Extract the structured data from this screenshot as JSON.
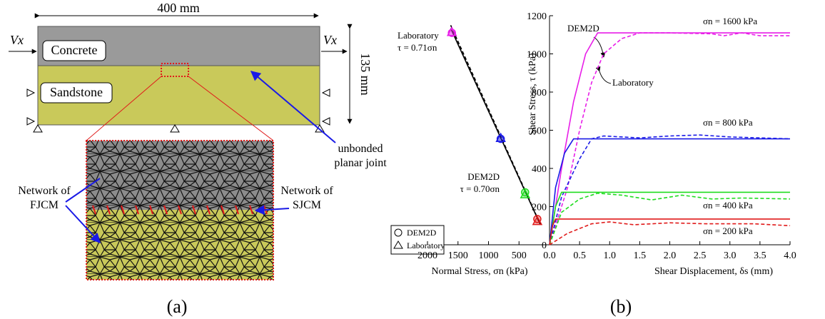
{
  "figure_a": {
    "width_label": "400 mm",
    "height_label": "135 mm",
    "load_labels": [
      "Vx",
      "Vx"
    ],
    "layers": [
      "Concrete",
      "Sandstone"
    ],
    "joint_label": [
      "unbonded",
      "planar joint"
    ],
    "fjcm_label": [
      "Network of",
      "FJCM"
    ],
    "sjcm_label": [
      "Network of",
      "SJCM"
    ]
  },
  "captions": [
    "(a)",
    "(b)"
  ],
  "chart_data": [
    {
      "type": "line",
      "xlabel": "Shear Displacement, δs (mm)",
      "ylabel": "Shear Stress, τ (kPa)",
      "xlim": [
        0,
        4
      ],
      "xticks": [
        {
          "value": 0,
          "label": "0.0"
        },
        {
          "value": 0.5,
          "label": "0.5"
        },
        {
          "value": 1,
          "label": "1.0"
        },
        {
          "value": 1.5,
          "label": "1.5"
        },
        {
          "value": 2,
          "label": "2.0"
        },
        {
          "value": 2.5,
          "label": "2.5"
        },
        {
          "value": 3,
          "label": "3.0"
        },
        {
          "value": 3.5,
          "label": "3.5"
        },
        {
          "value": 4,
          "label": "4.0"
        }
      ],
      "ylim": [
        0,
        1200
      ],
      "yticks": [
        0,
        200,
        400,
        600,
        800,
        1000,
        1200
      ],
      "series": [
        {
          "color": "#e81ee8",
          "dashed": false,
          "x": [
            0,
            0.2,
            0.4,
            0.6,
            0.8,
            4.0
          ],
          "values": [
            0,
            400,
            750,
            1000,
            1110,
            1110
          ]
        },
        {
          "color": "#e81ee8",
          "dashed": true,
          "x": [
            0,
            0.3,
            0.5,
            0.7,
            0.9,
            1.2,
            1.5,
            2.0,
            2.7,
            2.9,
            3.2,
            3.5,
            4.0
          ],
          "values": [
            0,
            300,
            600,
            850,
            1000,
            1080,
            1110,
            1110,
            1105,
            1095,
            1110,
            1095,
            1095
          ]
        },
        {
          "color": "#1a1ae6",
          "dashed": false,
          "x": [
            0,
            0.1,
            0.25,
            0.4,
            4.0
          ],
          "values": [
            0,
            300,
            480,
            555,
            555
          ]
        },
        {
          "color": "#1a1ae6",
          "dashed": true,
          "x": [
            0,
            0.2,
            0.5,
            0.7,
            0.9,
            1.5,
            2.0,
            2.5,
            3.0,
            3.5,
            4.0
          ],
          "values": [
            0,
            250,
            450,
            555,
            570,
            560,
            570,
            575,
            565,
            560,
            555
          ]
        },
        {
          "color": "#1fdc1f",
          "dashed": false,
          "x": [
            0,
            0.1,
            0.2,
            4.0
          ],
          "values": [
            0,
            200,
            275,
            275
          ]
        },
        {
          "color": "#1fdc1f",
          "dashed": true,
          "x": [
            0,
            0.2,
            0.5,
            0.8,
            1.2,
            1.7,
            2.2,
            2.7,
            3.2,
            4.0
          ],
          "values": [
            0,
            170,
            240,
            270,
            260,
            235,
            260,
            240,
            245,
            240
          ]
        },
        {
          "color": "#e01a1a",
          "dashed": false,
          "x": [
            0,
            0.05,
            0.1,
            4.0
          ],
          "values": [
            0,
            100,
            135,
            135
          ]
        },
        {
          "color": "#e01a1a",
          "dashed": true,
          "x": [
            0,
            0.3,
            0.7,
            1.0,
            1.4,
            2.0,
            2.6,
            3.4,
            4.0
          ],
          "values": [
            0,
            60,
            110,
            120,
            105,
            115,
            110,
            110,
            100
          ]
        }
      ],
      "annotations": [
        "σn = 1600 kPa",
        "σn = 800 kPa",
        "σn = 400 kPa",
        "σn = 200 kPa",
        "DEM2D",
        "Laboratory"
      ]
    },
    {
      "type": "scatter",
      "xlabel": "Normal Stress, σn (kPa)",
      "xlim": [
        0,
        2000
      ],
      "xticks": [
        500,
        1000,
        1500,
        2000
      ],
      "ylim": [
        0,
        1200
      ],
      "legend": "lower left",
      "series": [
        {
          "name": "DEM2D",
          "marker": "circle",
          "x": [
            1600,
            800,
            400,
            200
          ],
          "values": [
            1110,
            555,
            275,
            135
          ],
          "colors": [
            "#e81ee8",
            "#1a1ae6",
            "#1fdc1f",
            "#e01a1a"
          ]
        },
        {
          "name": "Laboratory",
          "marker": "triangle",
          "x": [
            1600,
            800,
            400,
            200
          ],
          "values": [
            1115,
            560,
            265,
            125
          ],
          "colors": [
            "#e81ee8",
            "#1a1ae6",
            "#1fdc1f",
            "#e01a1a"
          ]
        }
      ],
      "fits": [
        {
          "dashed": false,
          "x": [
            1620,
            150
          ],
          "values": [
            1134,
            105
          ]
        },
        {
          "dashed": true,
          "x": [
            1620,
            150
          ],
          "values": [
            1150,
            107
          ]
        }
      ],
      "annotations": [
        "Laboratory",
        "τ = 0.71σn",
        "DEM2D",
        "τ = 0.70σn"
      ]
    }
  ]
}
